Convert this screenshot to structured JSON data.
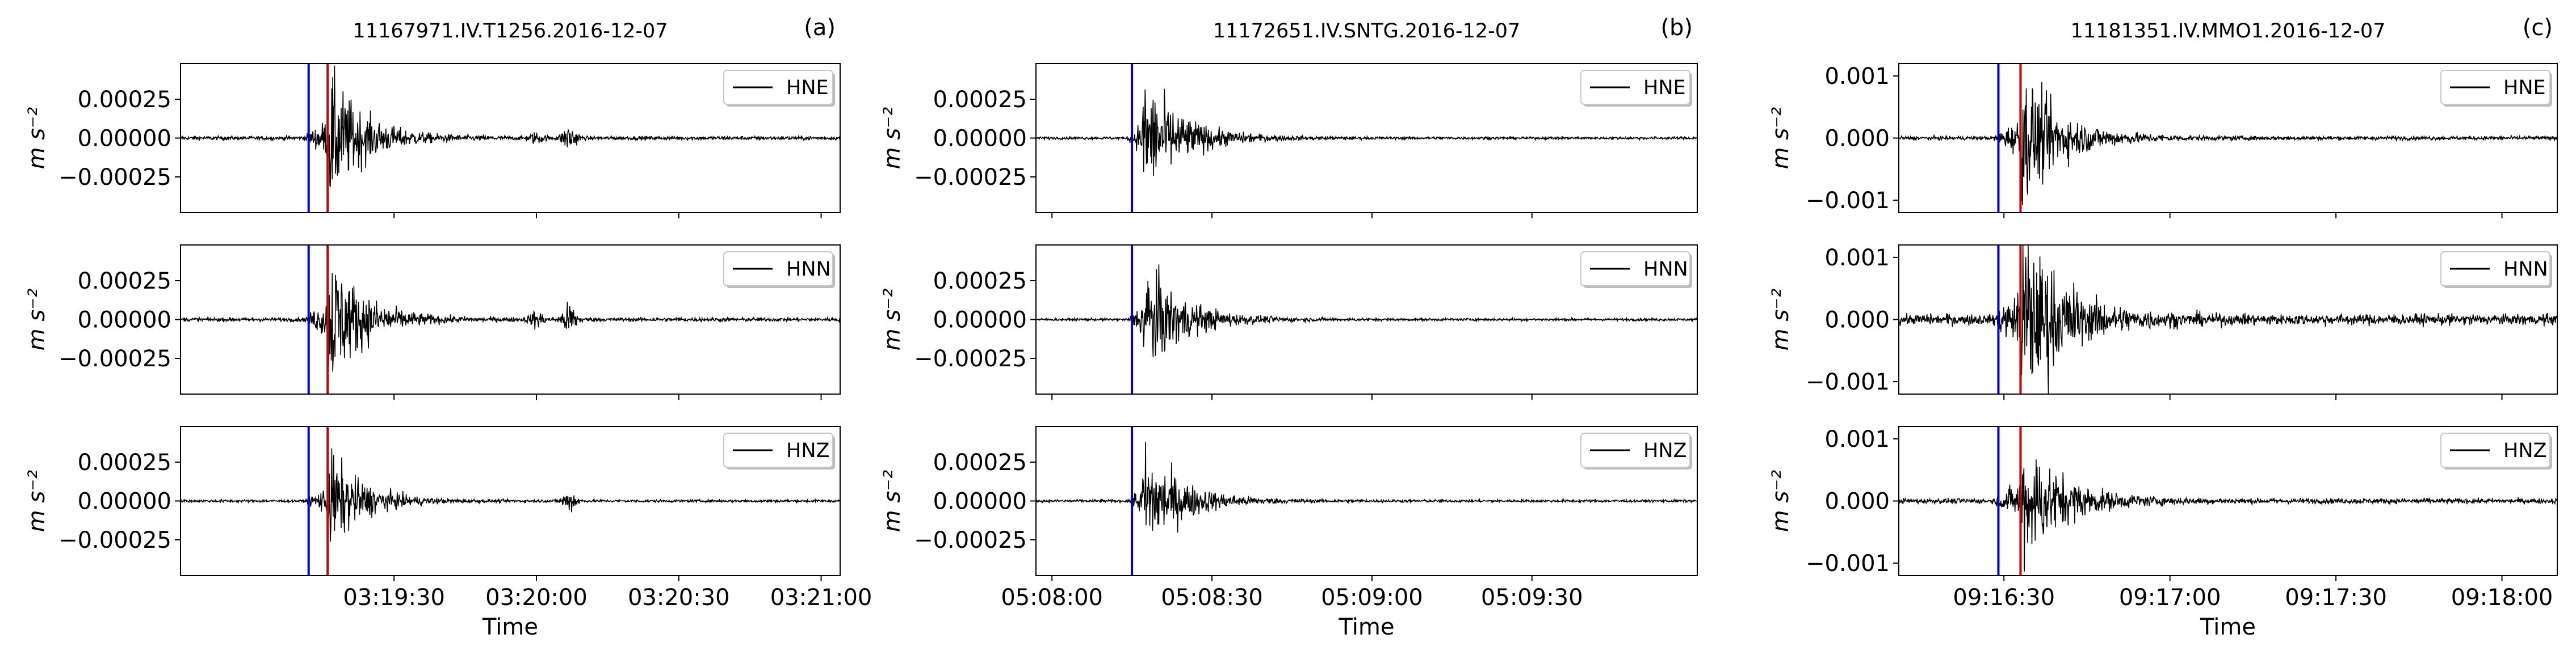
{
  "chart_data": [
    {
      "type": "line",
      "panel_label": "(a)",
      "title": "11167971.IV.T1256.2016-12-07",
      "xlabel": "Time",
      "ylabel": "m s⁻²",
      "x_ticks": [
        "03:19:30",
        "03:20:00",
        "03:20:30",
        "03:21:00"
      ],
      "x_tick_seconds": [
        30,
        60,
        90,
        120
      ],
      "x_range_seconds": [
        -15,
        124
      ],
      "ylim": [
        -0.00048,
        0.00048
      ],
      "y_ticks": [
        0.00025,
        0.0,
        -0.00025
      ],
      "y_tick_labels": [
        "0.00025",
        "0.00000",
        "−0.00025"
      ],
      "p_pick_seconds": 12,
      "s_pick_seconds": 16,
      "pick_colors": {
        "p": "#0000cc",
        "s": "#cc0000"
      },
      "series": [
        {
          "name": "HNE",
          "peak": 0.00045,
          "noise": 1.2e-05,
          "secondary": [
            [
              60,
              3e-05
            ],
            [
              67,
              8e-05
            ]
          ]
        },
        {
          "name": "HNN",
          "peak": 0.00047,
          "noise": 1.2e-05,
          "secondary": [
            [
              60,
              5e-05
            ],
            [
              67,
              0.0001
            ]
          ]
        },
        {
          "name": "HNZ",
          "peak": 0.00033,
          "noise": 8e-06,
          "secondary": [
            [
              67,
              7e-05
            ]
          ]
        }
      ]
    },
    {
      "type": "line",
      "panel_label": "(b)",
      "title": "11172651.IV.SNTG.2016-12-07",
      "xlabel": "Time",
      "ylabel": "m s⁻²",
      "x_ticks": [
        "05:08:00",
        "05:08:30",
        "05:09:00",
        "05:09:30"
      ],
      "x_tick_seconds": [
        0,
        30,
        60,
        90
      ],
      "x_range_seconds": [
        -3,
        121
      ],
      "ylim": [
        -0.00048,
        0.00048
      ],
      "y_ticks": [
        0.00025,
        0.0,
        -0.00025
      ],
      "y_tick_labels": [
        "0.00025",
        "0.00000",
        "−0.00025"
      ],
      "p_pick_seconds": 15,
      "s_pick_seconds": null,
      "pick_colors": {
        "p": "#0000cc",
        "s": "#cc0000"
      },
      "series": [
        {
          "name": "HNE",
          "peak": 0.0004,
          "noise": 8e-06,
          "secondary": []
        },
        {
          "name": "HNN",
          "peak": 0.00039,
          "noise": 8e-06,
          "secondary": []
        },
        {
          "name": "HNZ",
          "peak": 0.00036,
          "noise": 8e-06,
          "secondary": []
        }
      ]
    },
    {
      "type": "line",
      "panel_label": "(c)",
      "title": "11181351.IV.MMO1.2016-12-07",
      "xlabel": "Time",
      "ylabel": "m s⁻²",
      "x_ticks": [
        "09:16:30",
        "09:17:00",
        "09:17:30",
        "09:18:00"
      ],
      "x_tick_seconds": [
        30,
        60,
        90,
        120
      ],
      "x_range_seconds": [
        11,
        130
      ],
      "ylim": [
        -0.0012,
        0.0012
      ],
      "y_ticks": [
        0.001,
        0.0,
        -0.001
      ],
      "y_tick_labels": [
        "0.001",
        "0.000",
        "−0.001"
      ],
      "p_pick_seconds": 29,
      "s_pick_seconds": 33,
      "pick_colors": {
        "p": "#0000cc",
        "s": "#cc0000"
      },
      "series": [
        {
          "name": "HNE",
          "peak": 0.0011,
          "noise": 3e-05,
          "secondary": []
        },
        {
          "name": "HNN",
          "peak": 0.00115,
          "noise": 6e-05,
          "secondary": []
        },
        {
          "name": "HNZ",
          "peak": 0.0011,
          "noise": 4e-05,
          "secondary": []
        }
      ]
    }
  ]
}
